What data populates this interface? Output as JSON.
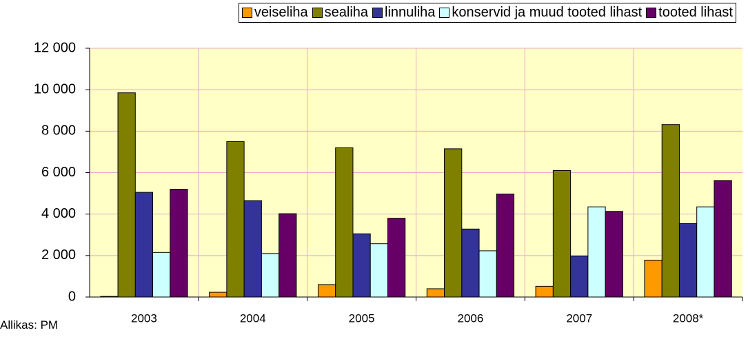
{
  "chart_data": {
    "type": "bar",
    "categories": [
      "2003",
      "2004",
      "2005",
      "2006",
      "2007",
      "2008*"
    ],
    "series": [
      {
        "name": "veiseliha",
        "color": "#ff9900",
        "values": [
          30,
          230,
          600,
          400,
          520,
          1780
        ]
      },
      {
        "name": "sealiha",
        "color": "#808000",
        "values": [
          9850,
          7500,
          7200,
          7150,
          6100,
          8320
        ]
      },
      {
        "name": "linnuliha",
        "color": "#333399",
        "values": [
          5050,
          4650,
          3050,
          3280,
          1980,
          3540
        ]
      },
      {
        "name": "konservid ja muud tooted lihast",
        "color": "#ccffff",
        "values": [
          2150,
          2100,
          2570,
          2230,
          4350,
          4350
        ]
      },
      {
        "name": "tooted lihast",
        "color": "#660066",
        "values": [
          5200,
          4020,
          3800,
          4970,
          4130,
          5620
        ]
      }
    ],
    "ylim": [
      0,
      12000
    ],
    "yticks": [
      0,
      {
        "value": 2000,
        "label": "2 000"
      },
      {
        "value": 4000,
        "label": "4 000"
      },
      {
        "value": 6000,
        "label": "6 000"
      },
      {
        "value": 8000,
        "label": "8 000"
      },
      {
        "value": 10000,
        "label": "10 000"
      },
      {
        "value": 12000,
        "label": "12 000"
      }
    ],
    "grid": true,
    "legend": "top-right",
    "source": "Allikas: PM"
  }
}
